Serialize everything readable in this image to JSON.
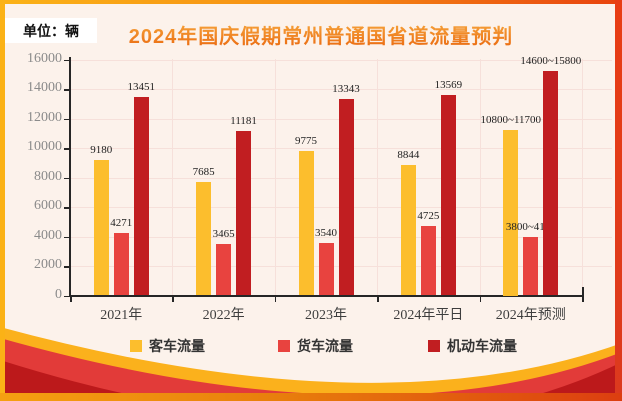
{
  "title": "2024年国庆假期常州普通国省道流量预判",
  "unit_label": "单位：辆",
  "chart_data": {
    "type": "bar",
    "title": "2024年国庆假期常州普通国省道流量预判",
    "unit": "单位：辆",
    "categories": [
      "2021年",
      "2022年",
      "2023年",
      "2024年平日",
      "2024年预测"
    ],
    "series": [
      {
        "name": "客车流量",
        "color": "#FCBE2D",
        "values": [
          9180,
          7685,
          9775,
          8844,
          11250
        ],
        "labels": [
          "9180",
          "7685",
          "9775",
          "8844",
          "10800~11700"
        ]
      },
      {
        "name": "货车流量",
        "color": "#E8433F",
        "values": [
          4271,
          3465,
          3540,
          4725,
          3950
        ],
        "labels": [
          "4271",
          "3465",
          "3540",
          "4725",
          "3800~4100"
        ]
      },
      {
        "name": "机动车流量",
        "color": "#C11E21",
        "values": [
          13451,
          11181,
          13343,
          13569,
          15200
        ],
        "labels": [
          "13451",
          "11181",
          "13343",
          "13569",
          "14600~15800"
        ]
      }
    ],
    "ylim": [
      0,
      16000
    ],
    "ytick_step": 2000,
    "grid": true,
    "legend_position": "bottom"
  },
  "theme": {
    "frame_gold": "#FBB216",
    "frame_red": "#DC3A1E",
    "title_orange": "#EF7E14",
    "wave_gold": "#FBB11C",
    "wave_red": "#E23B39",
    "wave_dark_red": "#BC191B",
    "gridline_pink": "#F6E0DA"
  }
}
